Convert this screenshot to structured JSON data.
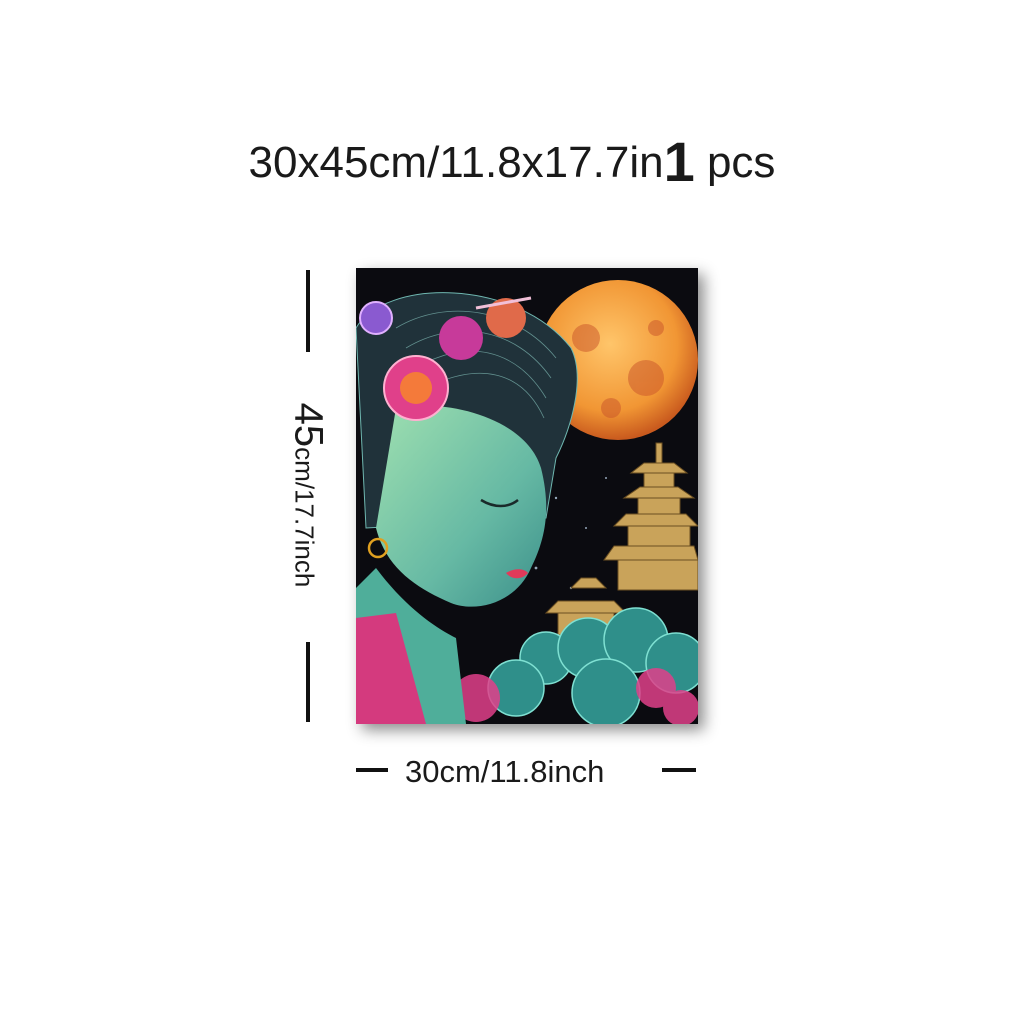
{
  "headline": {
    "size": "30x45cm/11.8x17.7in",
    "quantity": "1",
    "unit": "pcs"
  },
  "dimensions": {
    "height_big": "45",
    "height_rest": "cm/17.7inch",
    "width": "30cm/11.8inch"
  },
  "artwork": {
    "subject": "neon geisha with full moon and pagoda",
    "colors": {
      "background": "#0b0b10",
      "moon": "#f4a23a",
      "skin": "#7fc6a8",
      "hair": "#20323a",
      "flower": "#e0408a",
      "cloud": "#3aa39a"
    }
  }
}
